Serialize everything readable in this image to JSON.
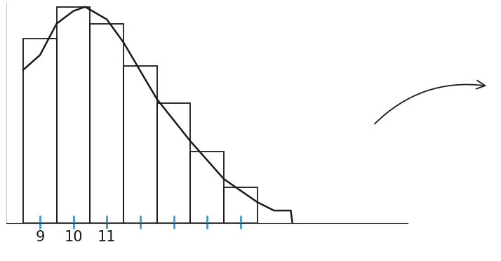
{
  "chart_data": {
    "type": "bar",
    "categories": [
      "9",
      "10",
      "11",
      null,
      null,
      null,
      null
    ],
    "values": [
      88,
      103,
      95,
      75,
      57,
      34,
      17
    ],
    "color": "#1a1a1a",
    "curve": {
      "type": "line",
      "color": "#1a1a1a",
      "x": [
        -0.5,
        0.0,
        0.5,
        1.0,
        1.35,
        2.0,
        2.5,
        3.5,
        4.5,
        5.5,
        6.5,
        7.0,
        7.5,
        7.55
      ],
      "values": [
        73,
        80,
        95,
        101,
        103,
        97,
        86,
        59,
        39,
        21,
        10,
        6,
        6,
        0
      ]
    },
    "xlim": [
      -1,
      11
    ],
    "ylim": [
      0,
      105
    ],
    "tick_labels": "x"
  }
}
